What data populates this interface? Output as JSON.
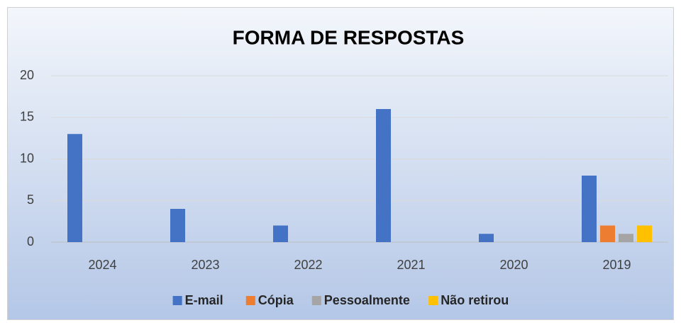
{
  "chart_data": {
    "type": "bar",
    "title": "FORMA DE RESPOSTAS",
    "categories": [
      "2024",
      "2023",
      "2022",
      "2021",
      "2020",
      "2019"
    ],
    "series": [
      {
        "name": "E-mail",
        "color": "#4472c4",
        "values": [
          13,
          4,
          2,
          16,
          1,
          8
        ]
      },
      {
        "name": "Cópia",
        "color": "#ed7d31",
        "values": [
          0,
          0,
          0,
          0,
          0,
          2
        ]
      },
      {
        "name": "Pessoalmente",
        "color": "#a5a5a5",
        "values": [
          0,
          0,
          0,
          0,
          0,
          1
        ]
      },
      {
        "name": "Não retirou",
        "color": "#ffc000",
        "values": [
          0,
          0,
          0,
          0,
          0,
          2
        ]
      }
    ],
    "ylim": [
      0,
      20
    ],
    "yticks": [
      0,
      5,
      10,
      15,
      20
    ],
    "grid": true,
    "legend": "bottom"
  }
}
